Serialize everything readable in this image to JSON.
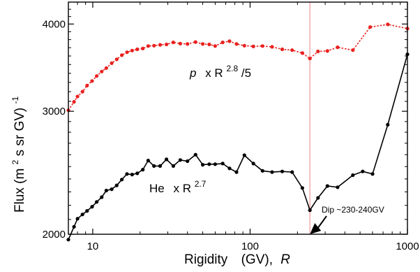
{
  "chart_data": {
    "type": "line",
    "xscale": "log",
    "yscale": "log",
    "xlim": [
      7,
      1000
    ],
    "ylim": [
      2000,
      4300
    ],
    "x_ticks": [
      {
        "value": 10,
        "label": "10"
      },
      {
        "value": 100,
        "label": "100"
      },
      {
        "value": 1000,
        "label": "1000"
      }
    ],
    "y_ticks": [
      {
        "value": 2000,
        "label": "2000"
      },
      {
        "value": 3000,
        "label": "3000"
      },
      {
        "value": 4000,
        "label": "4000"
      }
    ],
    "xlabel_parts": [
      "Rigidity",
      "(GV),",
      "R"
    ],
    "ylabel_parts": [
      "Flux (m",
      "2",
      " s sr GV)",
      "-1"
    ],
    "vertical_line": {
      "x": 240,
      "color": "#f4a6a6"
    },
    "series": [
      {
        "color": "#e8211f",
        "line_style": "dotted",
        "label_parts": {
          "a": "p",
          "b": "x R",
          "sup": "2.8",
          "c": "/5"
        },
        "points": [
          [
            7.0,
            3010
          ],
          [
            7.6,
            3095
          ],
          [
            8.0,
            3150
          ],
          [
            8.6,
            3200
          ],
          [
            9.2,
            3265
          ],
          [
            9.9,
            3315
          ],
          [
            10.6,
            3370
          ],
          [
            11.4,
            3420
          ],
          [
            12.2,
            3460
          ],
          [
            13.2,
            3515
          ],
          [
            14.2,
            3560
          ],
          [
            15.3,
            3610
          ],
          [
            16.5,
            3645
          ],
          [
            17.8,
            3665
          ],
          [
            19.2,
            3680
          ],
          [
            20.8,
            3690
          ],
          [
            22.5,
            3720
          ],
          [
            24.5,
            3725
          ],
          [
            26.8,
            3735
          ],
          [
            29.4,
            3740
          ],
          [
            32.5,
            3765
          ],
          [
            36.0,
            3750
          ],
          [
            40.0,
            3745
          ],
          [
            45.0,
            3770
          ],
          [
            50.0,
            3745
          ],
          [
            55.0,
            3740
          ],
          [
            60.0,
            3720
          ],
          [
            67.0,
            3765
          ],
          [
            74.0,
            3780
          ],
          [
            82.0,
            3745
          ],
          [
            92.0,
            3725
          ],
          [
            105.0,
            3715
          ],
          [
            120.0,
            3720
          ],
          [
            138.0,
            3710
          ],
          [
            160.0,
            3680
          ],
          [
            185.0,
            3670
          ],
          [
            215.0,
            3635
          ],
          [
            240.0,
            3570
          ],
          [
            270.0,
            3655
          ],
          [
            310.0,
            3660
          ],
          [
            360.0,
            3705
          ],
          [
            450.0,
            3670
          ],
          [
            580.0,
            3960
          ],
          [
            750.0,
            3995
          ],
          [
            1000.0,
            3940
          ]
        ]
      },
      {
        "color": "#000000",
        "line_style": "solid",
        "label_parts": {
          "a": "He",
          "b": "x R",
          "sup": "2.7",
          "c": ""
        },
        "points": [
          [
            7.0,
            1965
          ],
          [
            7.6,
            2050
          ],
          [
            8.0,
            2105
          ],
          [
            8.6,
            2135
          ],
          [
            9.2,
            2160
          ],
          [
            9.9,
            2190
          ],
          [
            10.6,
            2225
          ],
          [
            11.4,
            2260
          ],
          [
            12.2,
            2310
          ],
          [
            13.2,
            2320
          ],
          [
            14.2,
            2350
          ],
          [
            15.3,
            2395
          ],
          [
            16.5,
            2440
          ],
          [
            17.8,
            2435
          ],
          [
            19.2,
            2445
          ],
          [
            20.8,
            2475
          ],
          [
            22.5,
            2550
          ],
          [
            24.5,
            2505
          ],
          [
            26.8,
            2505
          ],
          [
            29.4,
            2560
          ],
          [
            32.5,
            2505
          ],
          [
            36.0,
            2555
          ],
          [
            40.0,
            2545
          ],
          [
            45.0,
            2600
          ],
          [
            50.0,
            2515
          ],
          [
            55.0,
            2520
          ],
          [
            60.0,
            2520
          ],
          [
            67.0,
            2525
          ],
          [
            74.0,
            2485
          ],
          [
            82.0,
            2455
          ],
          [
            92.0,
            2595
          ],
          [
            105.0,
            2525
          ],
          [
            120.0,
            2465
          ],
          [
            138.0,
            2455
          ],
          [
            160.0,
            2460
          ],
          [
            185.0,
            2455
          ],
          [
            215.0,
            2330
          ],
          [
            240.0,
            2165
          ],
          [
            270.0,
            2255
          ],
          [
            310.0,
            2345
          ],
          [
            360.0,
            2335
          ],
          [
            450.0,
            2430
          ],
          [
            520.0,
            2460
          ],
          [
            600.0,
            2440
          ],
          [
            750.0,
            2870
          ],
          [
            1000.0,
            3620
          ]
        ]
      }
    ],
    "callout": {
      "text": "Dip ~230-240GV",
      "x": 240,
      "y": 2000
    }
  }
}
